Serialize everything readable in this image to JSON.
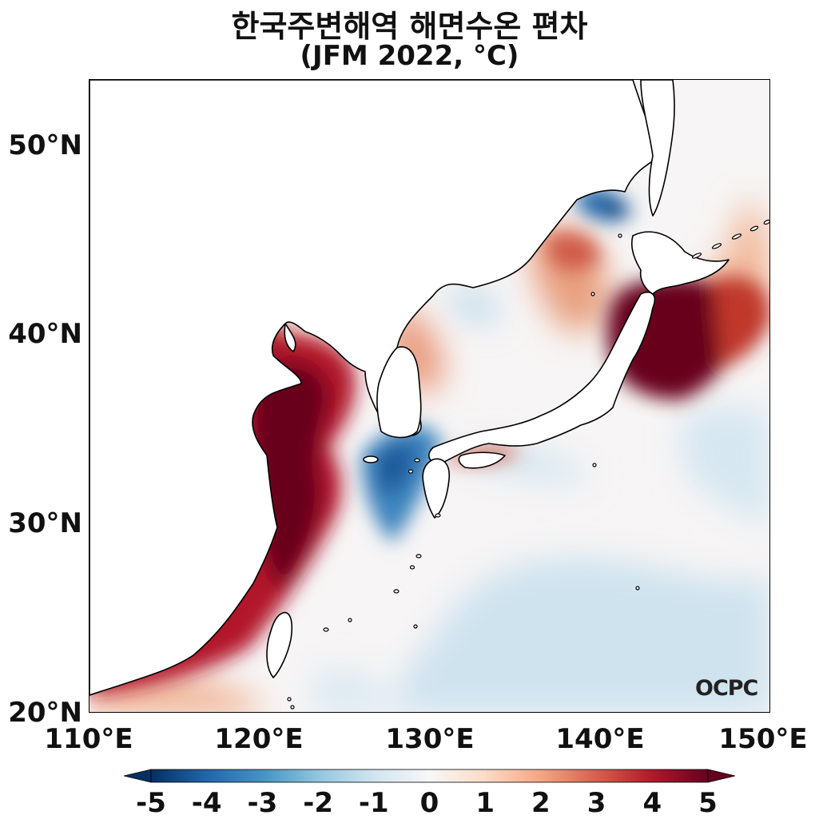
{
  "title": "한국주변해역 해면수온 편차",
  "subtitle": "(JFM 2022, °C)",
  "watermark": "OCPC",
  "map": {
    "lat_ticks": [
      "50°N",
      "40°N",
      "30°N",
      "20°N"
    ],
    "lon_ticks": [
      "110°E",
      "120°E",
      "130°E",
      "140°E",
      "150°E"
    ],
    "lat_range": [
      20,
      53.5
    ],
    "lon_range": [
      110,
      150
    ]
  },
  "colorbar": {
    "ticks": [
      "-5",
      "-4",
      "-3",
      "-2",
      "-1",
      "0",
      "1",
      "2",
      "3",
      "4",
      "5"
    ],
    "colormap": "RdBu_r",
    "colors": {
      "strong_cool": "#053061",
      "cool": "#2166ac",
      "light_cool": "#92c5de",
      "neutral": "#f7f7f7",
      "light_warm": "#f4a582",
      "warm": "#d6604d",
      "strong_warm": "#67001f"
    }
  },
  "colors": {
    "land": "#ffffff",
    "coastline": "#000000"
  }
}
